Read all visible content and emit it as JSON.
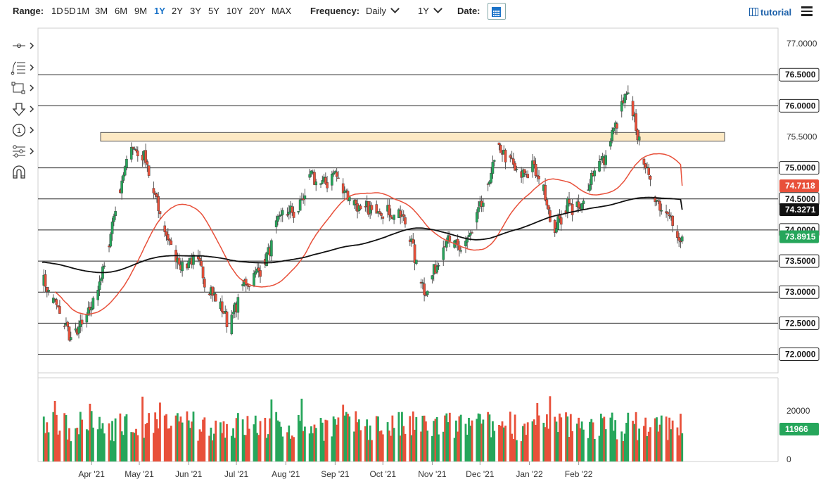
{
  "topbar": {
    "range_label": "Range:",
    "ranges": [
      "1D",
      "5D",
      "1M",
      "3M",
      "6M",
      "9M",
      "1Y",
      "2Y",
      "3Y",
      "5Y",
      "10Y",
      "20Y",
      "MAX"
    ],
    "active_range": "1Y",
    "frequency_label": "Frequency:",
    "frequency_value": "Daily",
    "period_value": "1Y",
    "date_label": "Date:",
    "tutorial_label": "tutorial"
  },
  "toolbar": {
    "tools": [
      "crosshair-icon",
      "fibonacci-icon",
      "rectangle-icon",
      "arrow-down-icon",
      "counter-icon",
      "settings-sliders-icon",
      "magnet-icon"
    ]
  },
  "colors": {
    "up": "#26a65b",
    "down": "#e8503a",
    "ma_short": "#e8503a",
    "ma_long": "#111111",
    "zone_fill": "#fde9c4",
    "zone_stroke": "#555555",
    "accent_blue": "#1a73c8"
  },
  "chart_data": {
    "type": "candlestick",
    "y_range": [
      71.7,
      77.25
    ],
    "y_ticks": [
      "77.0000",
      "76.5000",
      "76.0000",
      "75.5000",
      "75.0000",
      "74.5000",
      "74.0000",
      "73.5000",
      "73.0000",
      "72.5000",
      "72.0000"
    ],
    "x_labels": [
      "Apr '21",
      "May '21",
      "Jun '21",
      "Jul '21",
      "Aug '21",
      "Sep '21",
      "Oct '21",
      "Nov '21",
      "Dec '21",
      "Jan '22",
      "Feb '22"
    ],
    "horizontal_levels": [
      76.5,
      76.0,
      75.0,
      74.5,
      74.0,
      73.5,
      73.0,
      72.5,
      72.0
    ],
    "resistance_zone": [
      75.43,
      75.57
    ],
    "current_price": "73.8915",
    "ma_short_last": "74.7118",
    "ma_long_last": "74.3271",
    "volume": {
      "tick_labels": [
        "20000",
        "0"
      ],
      "last_value": "11966"
    },
    "waypoints": [
      {
        "d": 0,
        "v": 73.2
      },
      {
        "d": 10,
        "v": 72.7
      },
      {
        "d": 18,
        "v": 72.25
      },
      {
        "d": 28,
        "v": 72.55
      },
      {
        "d": 38,
        "v": 73.3
      },
      {
        "d": 48,
        "v": 74.6
      },
      {
        "d": 56,
        "v": 75.35
      },
      {
        "d": 64,
        "v": 75.15
      },
      {
        "d": 72,
        "v": 74.4
      },
      {
        "d": 80,
        "v": 73.75
      },
      {
        "d": 88,
        "v": 73.4
      },
      {
        "d": 96,
        "v": 73.55
      },
      {
        "d": 104,
        "v": 73.1
      },
      {
        "d": 112,
        "v": 72.75
      },
      {
        "d": 118,
        "v": 72.45
      },
      {
        "d": 126,
        "v": 73.1
      },
      {
        "d": 134,
        "v": 73.25
      },
      {
        "d": 142,
        "v": 73.6
      },
      {
        "d": 150,
        "v": 74.3
      },
      {
        "d": 160,
        "v": 74.25
      },
      {
        "d": 168,
        "v": 74.85
      },
      {
        "d": 176,
        "v": 74.7
      },
      {
        "d": 184,
        "v": 74.9
      },
      {
        "d": 192,
        "v": 74.55
      },
      {
        "d": 200,
        "v": 74.3
      },
      {
        "d": 210,
        "v": 74.35
      },
      {
        "d": 220,
        "v": 74.25
      },
      {
        "d": 228,
        "v": 74.15
      },
      {
        "d": 234,
        "v": 73.55
      },
      {
        "d": 240,
        "v": 73.0
      },
      {
        "d": 246,
        "v": 73.3
      },
      {
        "d": 254,
        "v": 73.85
      },
      {
        "d": 262,
        "v": 73.65
      },
      {
        "d": 270,
        "v": 73.95
      },
      {
        "d": 278,
        "v": 74.55
      },
      {
        "d": 286,
        "v": 75.3
      },
      {
        "d": 292,
        "v": 75.2
      },
      {
        "d": 300,
        "v": 74.85
      },
      {
        "d": 308,
        "v": 75.0
      },
      {
        "d": 316,
        "v": 74.55
      },
      {
        "d": 322,
        "v": 74.0
      },
      {
        "d": 330,
        "v": 74.4
      },
      {
        "d": 338,
        "v": 74.3
      },
      {
        "d": 346,
        "v": 74.95
      },
      {
        "d": 354,
        "v": 75.15
      },
      {
        "d": 362,
        "v": 75.85
      },
      {
        "d": 368,
        "v": 76.2
      },
      {
        "d": 374,
        "v": 75.55
      },
      {
        "d": 380,
        "v": 74.9
      },
      {
        "d": 386,
        "v": 74.45
      },
      {
        "d": 394,
        "v": 74.3
      },
      {
        "d": 400,
        "v": 73.75
      },
      {
        "d": 402,
        "v": 73.89
      }
    ]
  }
}
